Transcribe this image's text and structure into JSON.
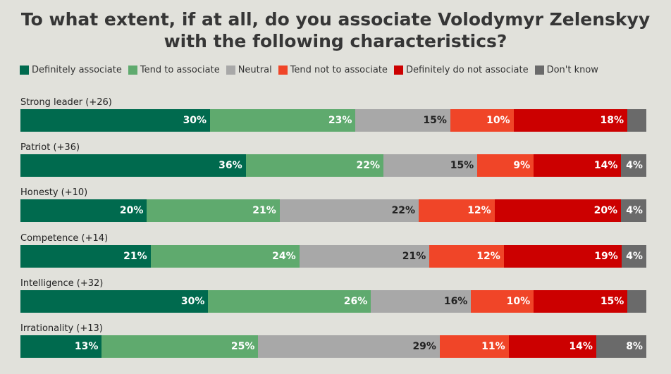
{
  "title": "To what extent, if at all, do you associate Volodymyr Zelenskyy with the following characteristics?",
  "legend": [
    {
      "label": "Definitely associate",
      "color": "#006a4e"
    },
    {
      "label": "Tend to associate",
      "color": "#5faa6e"
    },
    {
      "label": "Neutral",
      "color": "#a8a8a8"
    },
    {
      "label": "Tend not to associate",
      "color": "#f04528"
    },
    {
      "label": "Definitely do not associate",
      "color": "#cc0000"
    },
    {
      "label": "Don't know",
      "color": "#6a6a6a"
    }
  ],
  "chart_data": {
    "type": "bar",
    "orientation": "horizontal",
    "stacked": true,
    "title": "To what extent, if at all, do you associate Volodymyr Zelenskyy with the following characteristics?",
    "unit": "%",
    "categories": [
      "Strong leader (+26)",
      "Patriot (+36)",
      "Honesty (+10)",
      "Competence (+14)",
      "Intelligence (+32)",
      "Irrationality (+13)"
    ],
    "series": [
      {
        "name": "Definitely associate",
        "color": "#006a4e",
        "label_color": "#ffffff",
        "values": [
          30,
          36,
          20,
          21,
          30,
          13
        ]
      },
      {
        "name": "Tend to associate",
        "color": "#5faa6e",
        "label_color": "#ffffff",
        "values": [
          23,
          22,
          21,
          24,
          26,
          25
        ]
      },
      {
        "name": "Neutral",
        "color": "#a8a8a8",
        "label_color": "#222222",
        "values": [
          15,
          15,
          22,
          21,
          16,
          29
        ]
      },
      {
        "name": "Tend not to associate",
        "color": "#f04528",
        "label_color": "#ffffff",
        "values": [
          10,
          9,
          12,
          12,
          10,
          11
        ]
      },
      {
        "name": "Definitely do not associate",
        "color": "#cc0000",
        "label_color": "#ffffff",
        "values": [
          18,
          14,
          20,
          19,
          15,
          14
        ]
      },
      {
        "name": "Don't know",
        "color": "#6a6a6a",
        "label_color": "#ffffff",
        "values": [
          3,
          4,
          4,
          4,
          3,
          8
        ]
      }
    ],
    "shown_labels": [
      [
        "30%",
        "23%",
        "15%",
        "10%",
        "18%",
        ""
      ],
      [
        "36%",
        "22%",
        "15%",
        "9%",
        "14%",
        "4%"
      ],
      [
        "20%",
        "21%",
        "22%",
        "12%",
        "20%",
        "4%"
      ],
      [
        "21%",
        "24%",
        "21%",
        "12%",
        "19%",
        "4%"
      ],
      [
        "30%",
        "26%",
        "16%",
        "10%",
        "15%",
        ""
      ],
      [
        "13%",
        "25%",
        "29%",
        "11%",
        "14%",
        "8%"
      ]
    ],
    "legend_position": "top",
    "grid": false
  }
}
